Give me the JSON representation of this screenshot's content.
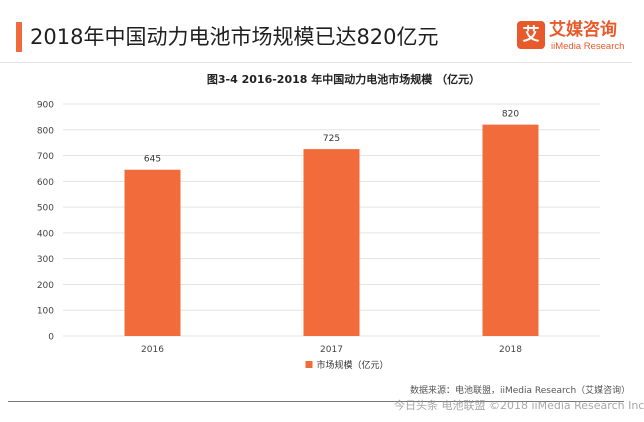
{
  "header": {
    "headline": "2018年中国动力电池市场规模已达820亿元"
  },
  "logo": {
    "mark": "艾",
    "name_cn": "艾媒咨询",
    "name_en": "iiMedia Research"
  },
  "colors": {
    "bar": "#f26b3a",
    "accent": "#e85a2c",
    "grid": "#e3e3e3",
    "axis_text": "#444444"
  },
  "chart_data": {
    "type": "bar",
    "title": "图3-4  2016-2018 年中国动力电池市场规模 （亿元）",
    "categories": [
      "2016",
      "2017",
      "2018"
    ],
    "series": [
      {
        "name": "市场规模（亿元）",
        "values": [
          645,
          725,
          820
        ]
      }
    ],
    "ylim": [
      0,
      900
    ],
    "yticks": [
      0,
      100,
      200,
      300,
      400,
      500,
      600,
      700,
      800,
      900
    ],
    "grid": true,
    "legend_position": "bottom"
  },
  "footer": {
    "source": "数据来源：电池联盟，iiMedia Research（艾媒咨询）",
    "watermark": "今日头条 电池联盟 ©2018 iiMedia Research Inc"
  }
}
